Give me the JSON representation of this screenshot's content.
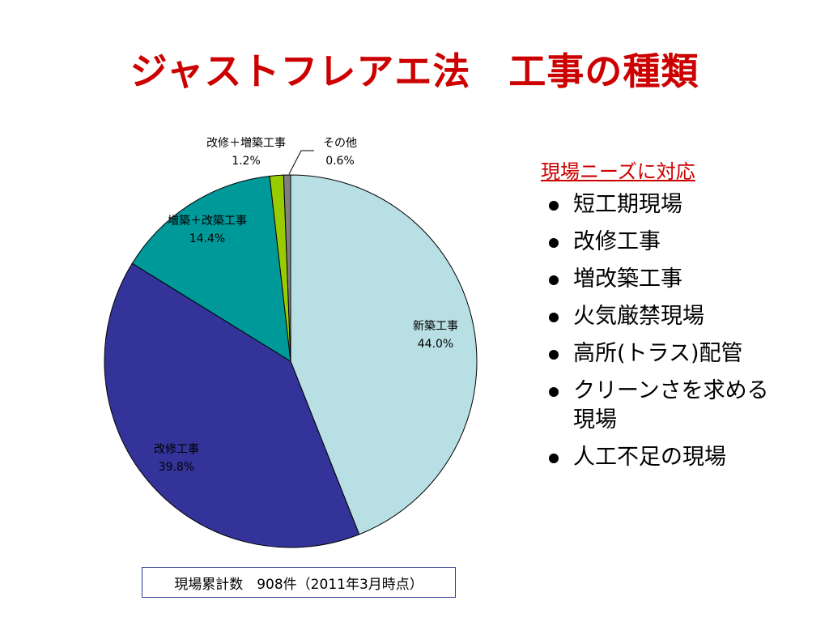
{
  "title": "ジャストフレアエ法　工事の種類",
  "chart_data": {
    "type": "pie",
    "slices": [
      {
        "label": "新築工事",
        "value": 44.0,
        "pct_label": "44.0%",
        "color": "#b8dfe3"
      },
      {
        "label": "改修工事",
        "value": 39.8,
        "pct_label": "39.8%",
        "color": "#333399"
      },
      {
        "label": "増築＋改築工事",
        "value": 14.4,
        "pct_label": "14.4%",
        "color": "#009999"
      },
      {
        "label": "改修＋増築工事",
        "value": 1.2,
        "pct_label": "1.2%",
        "color": "#99cc00"
      },
      {
        "label": "その他",
        "value": 0.6,
        "pct_label": "0.6%",
        "color": "#808080"
      }
    ]
  },
  "side": {
    "heading": "現場ニーズに対応",
    "items": [
      "短工期現場",
      "改修工事",
      "増改築工事",
      "火気厳禁現場",
      "高所(トラス)配管",
      "クリーンさを求める現場",
      "人工不足の現場"
    ]
  },
  "footer": "現場累計数　908件（2011年3月時点）"
}
